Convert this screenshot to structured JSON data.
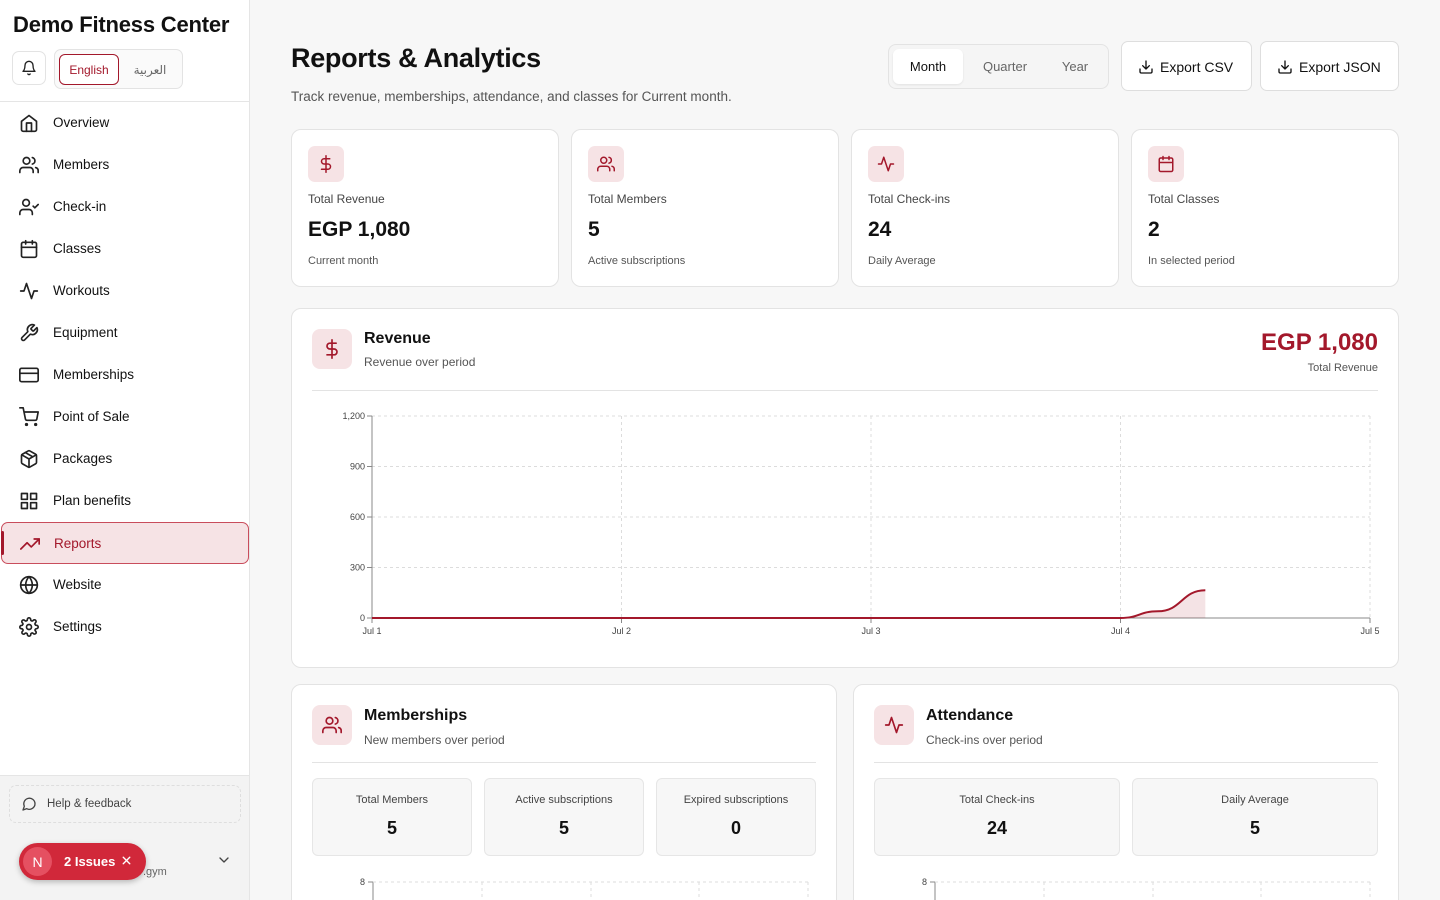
{
  "brand": {
    "name": "Demo Fitness Center"
  },
  "languages": {
    "en": "English",
    "ar": "العربية"
  },
  "nav": [
    {
      "label": "Overview",
      "icon": "home-icon"
    },
    {
      "label": "Members",
      "icon": "users-icon"
    },
    {
      "label": "Check-in",
      "icon": "user-check-icon"
    },
    {
      "label": "Classes",
      "icon": "calendar-icon"
    },
    {
      "label": "Workouts",
      "icon": "activity-icon"
    },
    {
      "label": "Equipment",
      "icon": "wrench-icon"
    },
    {
      "label": "Memberships",
      "icon": "credit-card-icon"
    },
    {
      "label": "Point of Sale",
      "icon": "cart-icon"
    },
    {
      "label": "Packages",
      "icon": "package-icon"
    },
    {
      "label": "Plan benefits",
      "icon": "grid-icon"
    },
    {
      "label": "Reports",
      "icon": "trending-up-icon",
      "active": true
    },
    {
      "label": "Website",
      "icon": "globe-icon"
    },
    {
      "label": "Settings",
      "icon": "gear-icon"
    }
  ],
  "sidebar_bottom": {
    "help": "Help & feedback",
    "user_domain": ".gym"
  },
  "issues_badge": {
    "avatar": "N",
    "text": "2 Issues"
  },
  "header": {
    "title": "Reports & Analytics",
    "subtitle": "Track revenue, memberships, attendance, and classes for Current month.",
    "periods": [
      "Month",
      "Quarter",
      "Year"
    ],
    "selected_period": "Month",
    "export_csv": "Export CSV",
    "export_json": "Export JSON"
  },
  "kpis": [
    {
      "icon": "dollar-icon",
      "label": "Total Revenue",
      "value": "EGP 1,080",
      "sub": "Current month"
    },
    {
      "icon": "users-icon",
      "label": "Total Members",
      "value": "5",
      "sub": "Active subscriptions"
    },
    {
      "icon": "activity-icon",
      "label": "Total Check-ins",
      "value": "24",
      "sub": "Daily Average"
    },
    {
      "icon": "calendar-icon",
      "label": "Total Classes",
      "value": "2",
      "sub": "In selected period"
    }
  ],
  "revenue_card": {
    "title": "Revenue",
    "subtitle": "Revenue over period",
    "total_value": "EGP 1,080",
    "total_label": "Total Revenue"
  },
  "memberships_card": {
    "title": "Memberships",
    "subtitle": "New members over period",
    "stats": [
      {
        "label": "Total Members",
        "value": "5"
      },
      {
        "label": "Active subscriptions",
        "value": "5"
      },
      {
        "label": "Expired subscriptions",
        "value": "0"
      }
    ],
    "chart_top_tick": "8"
  },
  "attendance_card": {
    "title": "Attendance",
    "subtitle": "Check-ins over period",
    "stats": [
      {
        "label": "Total Check-ins",
        "value": "24"
      },
      {
        "label": "Daily Average",
        "value": "5"
      }
    ],
    "chart_top_tick": "8"
  },
  "colors": {
    "accent": "#a3182b",
    "accent_light": "#f6e3e5"
  },
  "chart_data": {
    "type": "area",
    "x": [
      "Jul 1",
      "Jul 2",
      "Jul 3",
      "Jul 4",
      "Jul 5"
    ],
    "y_ticks": [
      0,
      300,
      600,
      900,
      1200
    ],
    "ylim": [
      0,
      1200
    ],
    "grid": true,
    "series": [
      {
        "x": [
          0,
          1,
          2,
          3,
          3.15,
          3.34
        ],
        "y": [
          0,
          0,
          0,
          0,
          40,
          165
        ]
      }
    ]
  }
}
